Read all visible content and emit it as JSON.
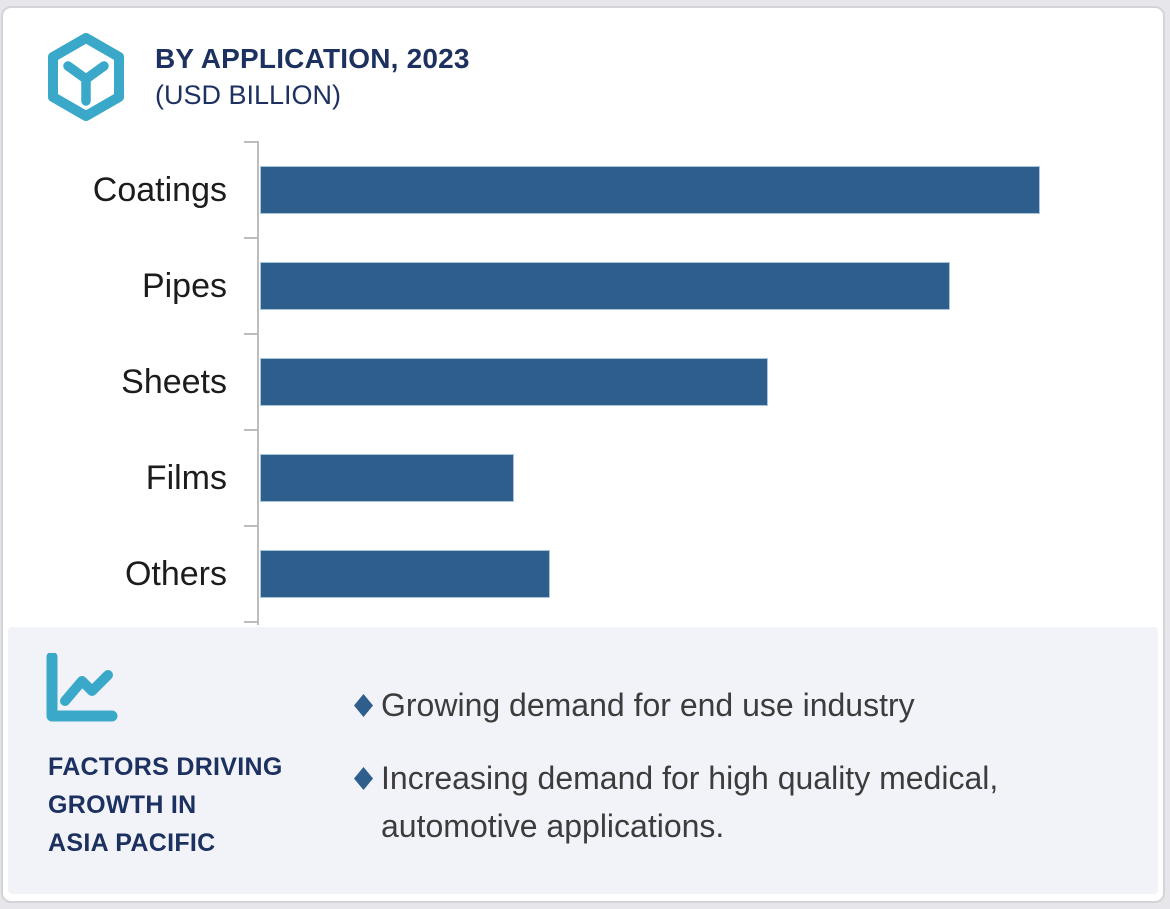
{
  "page": {
    "background": "#e7e7eb",
    "card_border": "#d3d4d9"
  },
  "header": {
    "title": "BY APPLICATION, 2023",
    "subtitle": "(USD BILLION)",
    "brand_icon": "hexagon-cube-icon",
    "text_color": "#1d3160",
    "icon_color": "#3aa9c9"
  },
  "chart_data": {
    "type": "bar",
    "orientation": "horizontal",
    "title": "BY APPLICATION, 2023",
    "value_unit_label": "(USD BILLION)",
    "categories": [
      "Coatings",
      "Pipes",
      "Sheets",
      "Films",
      "Others"
    ],
    "values": [
      100,
      88.5,
      65.1,
      32.6,
      37.2
    ],
    "values_note": "value axis unlabeled; values estimated as % of longest bar (Coatings)",
    "bar_color": "#2d5e8c",
    "axis_color": "#bdbdbd",
    "grid": false,
    "data_labels": false,
    "legend": false
  },
  "factors_panel": {
    "icon": "line-chart-icon",
    "icon_color": "#3aa9c9",
    "background": "#f1f3f8",
    "heading": "FACTORS DRIVING\nGROWTH IN\nASIA PACIFIC",
    "heading_color": "#1d3160",
    "bullet_marker": "diamond-icon",
    "bullet_color": "#2d5e8c",
    "bullets": [
      "Growing demand for end use industry",
      "Increasing demand for high quality medical,\nautomotive applications."
    ]
  }
}
